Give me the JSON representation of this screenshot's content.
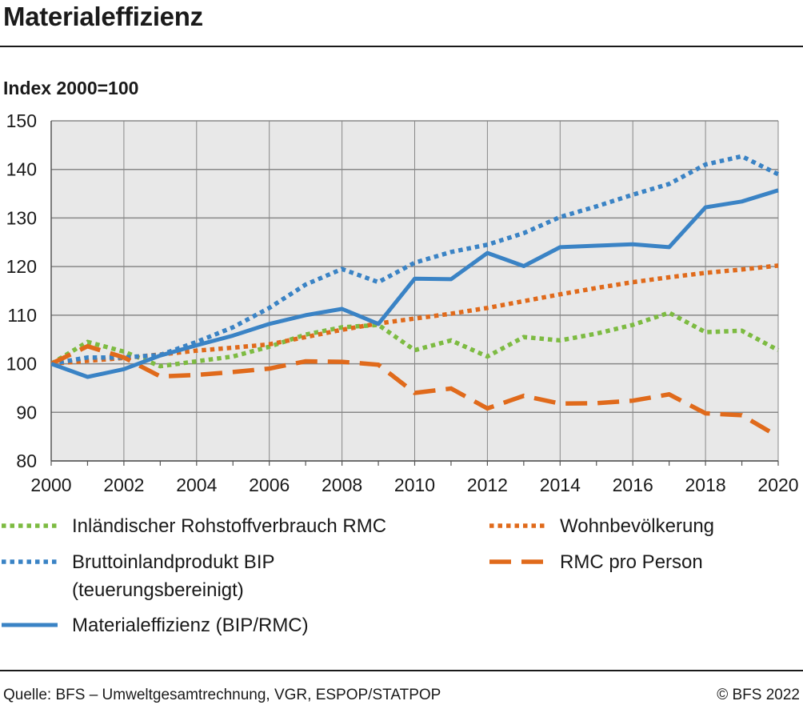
{
  "title": "Materialeffizienz",
  "ylabel": "Index 2000=100",
  "footer": {
    "source": "Quelle: BFS – Umweltgesamtrechnung, VGR, ESPOP/STATPOP",
    "copyright": "© BFS 2022"
  },
  "colors": {
    "green": "#7dbb42",
    "blue": "#3a83c5",
    "orange": "#e06a1b",
    "plot_bg": "#e8e8e8",
    "grid": "#888888"
  },
  "chart_data": {
    "type": "line",
    "x": [
      2000,
      2001,
      2002,
      2003,
      2004,
      2005,
      2006,
      2007,
      2008,
      2009,
      2010,
      2011,
      2012,
      2013,
      2014,
      2015,
      2016,
      2017,
      2018,
      2019,
      2020
    ],
    "xlim": [
      2000,
      2020
    ],
    "xticks": [
      2000,
      2002,
      2004,
      2006,
      2008,
      2010,
      2012,
      2014,
      2016,
      2018,
      2020
    ],
    "ylim": [
      80,
      150
    ],
    "yticks": [
      80,
      90,
      100,
      110,
      120,
      130,
      140,
      150
    ],
    "grid": true,
    "legend_position": "bottom",
    "series": [
      {
        "name": "Inländischer Rohstoffverbrauch RMC",
        "style": "dotted",
        "color": "#7dbb42",
        "values": [
          100,
          104.5,
          102.5,
          99.5,
          100.5,
          101.5,
          103.5,
          106,
          107.5,
          108,
          102.8,
          104.8,
          101.5,
          105.5,
          104.8,
          106.2,
          108,
          110.5,
          106.5,
          106.8,
          102.8
        ]
      },
      {
        "name": "Wohnbevölkerung",
        "style": "dotted",
        "color": "#e06a1b",
        "values": [
          100,
          100.6,
          101.2,
          101.9,
          102.7,
          103.3,
          104,
          105.5,
          107,
          108.3,
          109.3,
          110.3,
          111.5,
          112.9,
          114.3,
          115.6,
          116.8,
          117.8,
          118.7,
          119.4,
          120.2
        ]
      },
      {
        "name": "Bruttoinlandprodukt BIP (teuerungsbereinigt)",
        "style": "dotted",
        "color": "#3a83c5",
        "values": [
          100,
          101.3,
          101.3,
          101.8,
          104.5,
          107.5,
          111.5,
          116.3,
          119.5,
          116.8,
          120.8,
          123,
          124.5,
          126.9,
          130.2,
          132.4,
          134.8,
          137,
          141,
          142.7,
          139
        ]
      },
      {
        "name": "RMC pro Person",
        "style": "dashed",
        "color": "#e06a1b",
        "values": [
          100,
          103.6,
          101.3,
          97.4,
          97.7,
          98.3,
          99,
          100.5,
          100.4,
          99.8,
          94,
          94.9,
          90.8,
          93.4,
          91.8,
          91.9,
          92.4,
          93.7,
          89.8,
          89.4,
          85
        ]
      },
      {
        "name": "Materialeffizienz (BIP/RMC)",
        "style": "solid",
        "color": "#3a83c5",
        "values": [
          100,
          97.3,
          98.9,
          101.7,
          103.8,
          105.8,
          108.2,
          110,
          111.3,
          108.2,
          117.5,
          117.4,
          122.8,
          120.1,
          124,
          124.3,
          124.6,
          124,
          132.2,
          133.4,
          135.7
        ]
      }
    ]
  },
  "legend": [
    {
      "label": "Inländischer Rohstoffverbrauch RMC",
      "label2": "",
      "series_index": 0
    },
    {
      "label": "Wohnbevölkerung",
      "label2": "",
      "series_index": 1
    },
    {
      "label": "Bruttoinlandprodukt BIP",
      "label2": "(teuerungsbereinigt)",
      "series_index": 2
    },
    {
      "label": "RMC pro Person",
      "label2": "",
      "series_index": 3
    },
    {
      "label": "Materialeffizienz (BIP/RMC)",
      "label2": "",
      "series_index": 4
    }
  ]
}
